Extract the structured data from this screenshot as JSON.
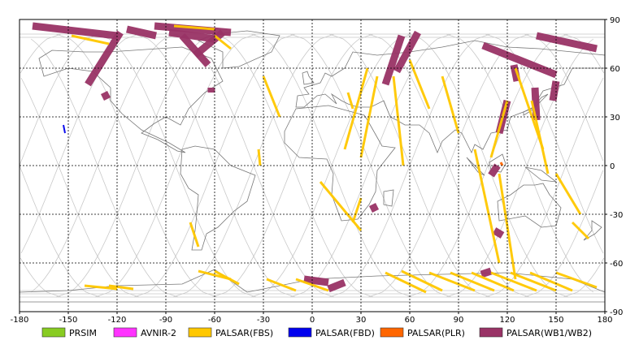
{
  "chart_data": {
    "type": "map",
    "title": "",
    "xlabel": "",
    "ylabel": "",
    "xlim": [
      -180,
      180
    ],
    "ylim": [
      -90,
      90
    ],
    "x_ticks": [
      -180,
      -150,
      -120,
      -90,
      -60,
      -30,
      0,
      30,
      60,
      90,
      120,
      150,
      180
    ],
    "y_ticks": [
      -90,
      -60,
      -30,
      0,
      30,
      60,
      90
    ],
    "grid": true,
    "legend_position": "bottom",
    "colors": {
      "coastline": "#777777",
      "orbit": "#c8c8c8",
      "grid": "#000000"
    },
    "legend": [
      {
        "name": "PRSIM",
        "color": "#88cc22"
      },
      {
        "name": "AVNIR-2",
        "color": "#ff33ff"
      },
      {
        "name": "PALSAR(FBS)",
        "color": "#ffc800"
      },
      {
        "name": "PALSAR(FBD)",
        "color": "#0000ee"
      },
      {
        "name": "PALSAR(PLR)",
        "color": "#ff6600"
      },
      {
        "name": "PALSAR(WB1/WB2)",
        "color": "#993366"
      }
    ],
    "swaths": {
      "wb": [
        [
          [
            -172,
            86
          ],
          [
            -120,
            80
          ]
        ],
        [
          [
            -118,
            82
          ],
          [
            -138,
            50
          ]
        ],
        [
          [
            -97,
            86
          ],
          [
            -50,
            82
          ]
        ],
        [
          [
            -55,
            82
          ],
          [
            -72,
            68
          ]
        ],
        [
          [
            -80,
            80
          ],
          [
            -64,
            62
          ]
        ],
        [
          [
            -5,
            -70
          ],
          [
            10,
            -72
          ]
        ],
        [
          [
            -88,
            82
          ],
          [
            -60,
            78
          ]
        ],
        [
          [
            55,
            80
          ],
          [
            45,
            50
          ]
        ],
        [
          [
            65,
            82
          ],
          [
            52,
            58
          ]
        ],
        [
          [
            105,
            74
          ],
          [
            150,
            56
          ]
        ],
        [
          [
            138,
            80
          ],
          [
            175,
            72
          ]
        ],
        [
          [
            -62,
            48
          ],
          [
            -62,
            45
          ]
        ],
        [
          [
            -128,
            45
          ],
          [
            -126,
            41
          ]
        ],
        [
          [
            -114,
            84
          ],
          [
            -96,
            80
          ]
        ],
        [
          [
            137,
            48
          ],
          [
            138,
            28
          ]
        ],
        [
          [
            120,
            40
          ],
          [
            115,
            20
          ]
        ],
        [
          [
            114,
            0
          ],
          [
            110,
            -6
          ]
        ],
        [
          [
            112,
            -40
          ],
          [
            117,
            -43
          ]
        ],
        [
          [
            124,
            62
          ],
          [
            126,
            52
          ]
        ],
        [
          [
            150,
            52
          ],
          [
            148,
            40
          ]
        ],
        [
          [
            37,
            -24
          ],
          [
            39,
            -28
          ]
        ],
        [
          [
            10,
            -76
          ],
          [
            20,
            -72
          ]
        ],
        [
          [
            110,
            -65
          ],
          [
            104,
            -67
          ]
        ]
      ],
      "fbs": [
        [
          [
            -140,
            -74
          ],
          [
            -120,
            -76
          ]
        ],
        [
          [
            -125,
            -74
          ],
          [
            -110,
            -76
          ]
        ],
        [
          [
            -60,
            -65
          ],
          [
            -45,
            -73
          ]
        ],
        [
          [
            -28,
            -70
          ],
          [
            -10,
            -77
          ]
        ],
        [
          [
            -10,
            -70
          ],
          [
            10,
            -77
          ]
        ],
        [
          [
            45,
            -66
          ],
          [
            70,
            -78
          ]
        ],
        [
          [
            55,
            -65
          ],
          [
            80,
            -77
          ]
        ],
        [
          [
            72,
            -66
          ],
          [
            100,
            -77
          ]
        ],
        [
          [
            85,
            -66
          ],
          [
            112,
            -77
          ]
        ],
        [
          [
            98,
            -66
          ],
          [
            124,
            -77
          ]
        ],
        [
          [
            110,
            -66
          ],
          [
            138,
            -77
          ]
        ],
        [
          [
            122,
            -66
          ],
          [
            150,
            -77
          ]
        ],
        [
          [
            134,
            -66
          ],
          [
            160,
            -77
          ]
        ],
        [
          [
            150,
            -66
          ],
          [
            175,
            -75
          ]
        ],
        [
          [
            -70,
            -65
          ],
          [
            -50,
            -70
          ]
        ],
        [
          [
            -30,
            55
          ],
          [
            -20,
            30
          ]
        ],
        [
          [
            -33,
            10
          ],
          [
            -32,
            0
          ]
        ],
        [
          [
            34,
            60
          ],
          [
            20,
            10
          ]
        ],
        [
          [
            40,
            55
          ],
          [
            30,
            5
          ]
        ],
        [
          [
            50,
            55
          ],
          [
            56,
            0
          ]
        ],
        [
          [
            60,
            65
          ],
          [
            72,
            35
          ]
        ],
        [
          [
            80,
            55
          ],
          [
            90,
            20
          ]
        ],
        [
          [
            100,
            10
          ],
          [
            115,
            -60
          ]
        ],
        [
          [
            115,
            -5
          ],
          [
            125,
            -70
          ]
        ],
        [
          [
            120,
            40
          ],
          [
            110,
            5
          ]
        ],
        [
          [
            125,
            60
          ],
          [
            142,
            10
          ]
        ],
        [
          [
            135,
            40
          ],
          [
            145,
            -5
          ]
        ],
        [
          [
            150,
            -5
          ],
          [
            165,
            -30
          ]
        ],
        [
          [
            160,
            -35
          ],
          [
            170,
            -45
          ]
        ],
        [
          [
            -148,
            80
          ],
          [
            -125,
            75
          ]
        ],
        [
          [
            -60,
            80
          ],
          [
            -50,
            72
          ]
        ],
        [
          [
            5,
            -10
          ],
          [
            30,
            -40
          ]
        ],
        [
          [
            22,
            45
          ],
          [
            25,
            35
          ]
        ],
        [
          [
            30,
            -20
          ],
          [
            25,
            -35
          ]
        ],
        [
          [
            -75,
            -35
          ],
          [
            -70,
            -50
          ]
        ],
        [
          [
            -85,
            86
          ],
          [
            -60,
            84
          ]
        ]
      ],
      "fbd": [
        [
          [
            -153,
            25
          ],
          [
            -152,
            20
          ]
        ]
      ],
      "plr": [
        [
          [
            116,
            2
          ],
          [
            117,
            0
          ]
        ]
      ]
    }
  }
}
